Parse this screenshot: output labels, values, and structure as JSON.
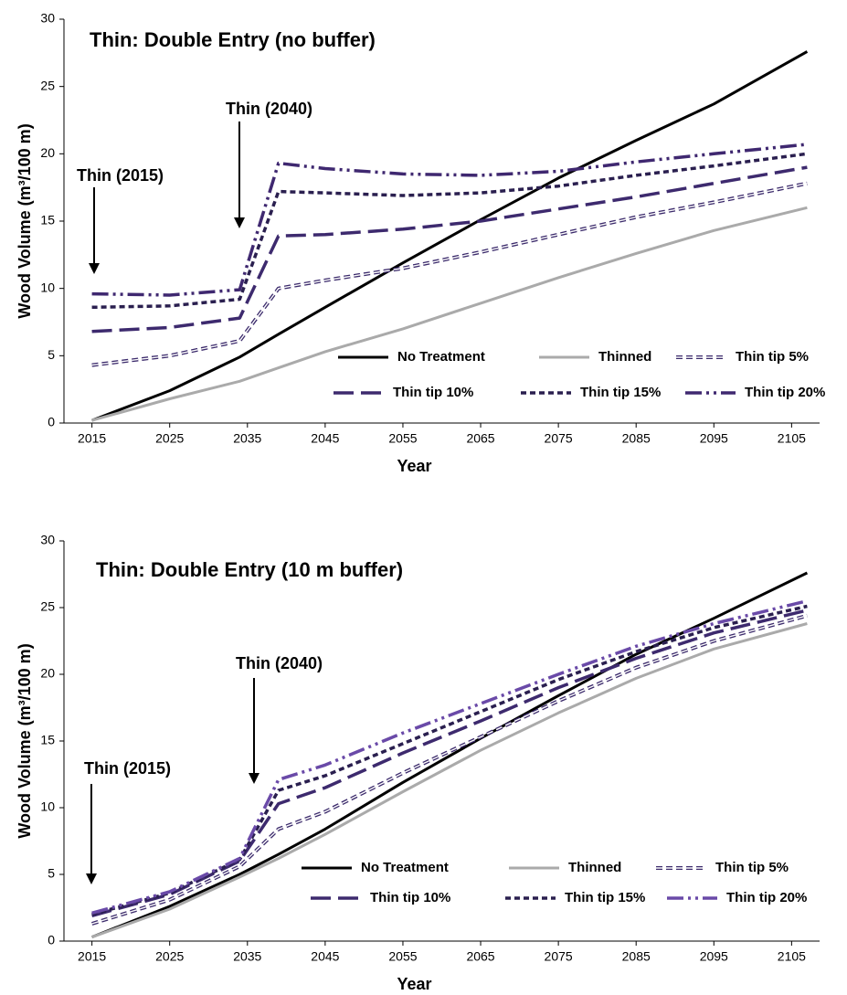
{
  "chart_data": [
    {
      "type": "line",
      "title": "Thin: Double Entry (no buffer)",
      "x_label": "Year",
      "y_label": "Wood Volume (m³/100 m)",
      "annotations": [
        "Thin (2015)",
        "Thin (2040)"
      ],
      "x": [
        2015,
        2025,
        2034,
        2039,
        2045,
        2055,
        2065,
        2075,
        2085,
        2095,
        2107
      ],
      "xlim": [
        2011.4,
        2108.6
      ],
      "xticks": [
        2015,
        2025,
        2035,
        2045,
        2055,
        2065,
        2075,
        2085,
        2095,
        2105
      ],
      "ylim": [
        0,
        30
      ],
      "yticks": [
        0,
        5,
        10,
        15,
        20,
        25,
        30
      ],
      "legend": "bottom-right",
      "series": [
        {
          "name": "No Treatment",
          "color": "#000000",
          "style": "solid",
          "values": [
            0.2,
            2.4,
            4.9,
            6.6,
            8.6,
            11.9,
            15.1,
            18.2,
            21.0,
            23.7,
            27.6
          ]
        },
        {
          "name": "Thinned",
          "color": "#aaaaaa",
          "style": "solid",
          "values": [
            0.2,
            1.8,
            3.1,
            4.1,
            5.3,
            7.0,
            8.9,
            10.8,
            12.6,
            14.3,
            16.0
          ]
        },
        {
          "name": "Thin tip 5%",
          "color": "#3b2a6b",
          "style": "double-dash",
          "values": [
            4.3,
            5.0,
            6.1,
            10.0,
            10.6,
            11.5,
            12.7,
            14.0,
            15.3,
            16.4,
            17.8
          ]
        },
        {
          "name": "Thin tip 10%",
          "color": "#3d2a6e",
          "style": "long-dash",
          "values": [
            6.8,
            7.1,
            7.8,
            13.9,
            14.0,
            14.4,
            15.0,
            15.9,
            16.8,
            17.8,
            19.0
          ]
        },
        {
          "name": "Thin tip 15%",
          "color": "#2a1f4f",
          "style": "short-dash",
          "values": [
            8.6,
            8.7,
            9.2,
            17.2,
            17.1,
            16.9,
            17.1,
            17.6,
            18.4,
            19.1,
            20.0
          ]
        },
        {
          "name": "Thin tip 20%",
          "color": "#3f2870",
          "style": "dash-dot-dot",
          "values": [
            9.6,
            9.5,
            9.9,
            19.3,
            18.9,
            18.5,
            18.4,
            18.7,
            19.4,
            20.0,
            20.7
          ]
        }
      ]
    },
    {
      "type": "line",
      "title": "Thin: Double Entry (10 m buffer)",
      "x_label": "Year",
      "y_label": "Wood Volume (m³/100 m)",
      "annotations": [
        "Thin (2015)",
        "Thin (2040)"
      ],
      "x": [
        2015,
        2025,
        2034,
        2039,
        2045,
        2055,
        2065,
        2075,
        2085,
        2095,
        2107
      ],
      "xlim": [
        2011.4,
        2108.6
      ],
      "xticks": [
        2015,
        2025,
        2035,
        2045,
        2055,
        2065,
        2075,
        2085,
        2095,
        2105
      ],
      "ylim": [
        0,
        30
      ],
      "yticks": [
        0,
        5,
        10,
        15,
        20,
        25,
        30
      ],
      "legend": "bottom-right",
      "series": [
        {
          "name": "No Treatment",
          "color": "#000000",
          "style": "solid",
          "values": [
            0.3,
            2.6,
            5.0,
            6.5,
            8.4,
            11.9,
            15.2,
            18.4,
            21.5,
            24.2,
            27.6
          ]
        },
        {
          "name": "Thinned",
          "color": "#aaaaaa",
          "style": "solid",
          "values": [
            0.3,
            2.4,
            4.8,
            6.2,
            8.0,
            11.2,
            14.3,
            17.1,
            19.7,
            21.9,
            23.8
          ]
        },
        {
          "name": "Thin tip 5%",
          "color": "#3b2a6b",
          "style": "double-dash",
          "values": [
            1.3,
            3.1,
            5.6,
            8.4,
            9.7,
            12.6,
            15.3,
            18.0,
            20.5,
            22.5,
            24.4
          ]
        },
        {
          "name": "Thin tip 10%",
          "color": "#3d2a6e",
          "style": "long-dash",
          "values": [
            1.9,
            3.5,
            6.0,
            10.3,
            11.5,
            14.1,
            16.5,
            19.0,
            21.2,
            23.1,
            24.8
          ]
        },
        {
          "name": "Thin tip 15%",
          "color": "#2a1f4f",
          "style": "short-dash",
          "values": [
            2.0,
            3.6,
            6.1,
            11.3,
            12.4,
            14.8,
            17.2,
            19.6,
            21.7,
            23.5,
            25.1
          ]
        },
        {
          "name": "Thin tip 20%",
          "color": "#6a4aa8",
          "style": "dash-dot-dot",
          "values": [
            2.1,
            3.7,
            6.2,
            12.1,
            13.2,
            15.6,
            17.8,
            20.0,
            22.1,
            23.8,
            25.5
          ]
        }
      ]
    }
  ]
}
